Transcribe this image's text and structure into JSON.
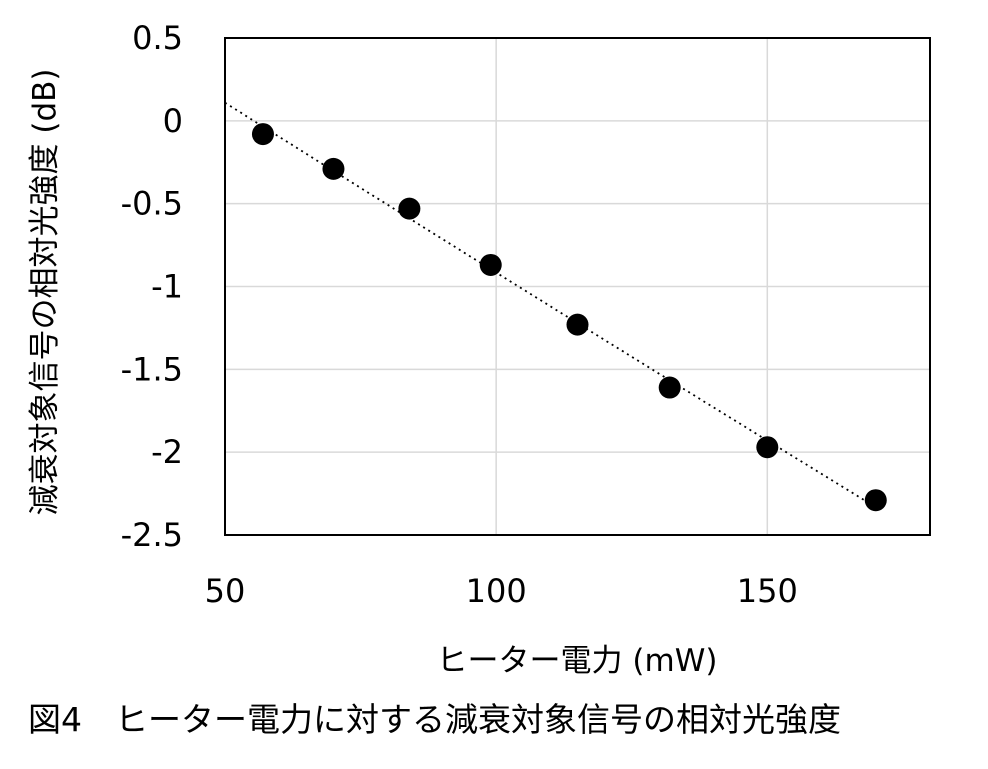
{
  "chart_data": {
    "type": "scatter",
    "xlabel": "ヒーター電力 (mW)",
    "ylabel": "減衰対象信号の相対光強度 (dB)",
    "xlim": [
      50,
      180
    ],
    "ylim": [
      -2.5,
      0.5
    ],
    "xticks": [
      50,
      100,
      150
    ],
    "xtick_labels": [
      "50",
      "100",
      "150"
    ],
    "yticks": [
      0.5,
      0,
      -0.5,
      -1,
      -1.5,
      -2,
      -2.5
    ],
    "ytick_labels": [
      "0.5",
      "0",
      "-0.5",
      "-1",
      "-1.5",
      "-2",
      "-2.5"
    ],
    "grid": true,
    "trendline": "dotted smooth fit",
    "series": [
      {
        "x": [
          57,
          70,
          84,
          99,
          115,
          132,
          150,
          170
        ],
        "y": [
          -0.08,
          -0.29,
          -0.53,
          -0.87,
          -1.23,
          -1.61,
          -1.97,
          -2.29
        ]
      }
    ],
    "colors": {
      "marker": "#000000",
      "grid": "#d9d9d9",
      "frame": "#000000"
    }
  },
  "caption": "図4　ヒーター電力に対する減衰対象信号の相対光強度"
}
